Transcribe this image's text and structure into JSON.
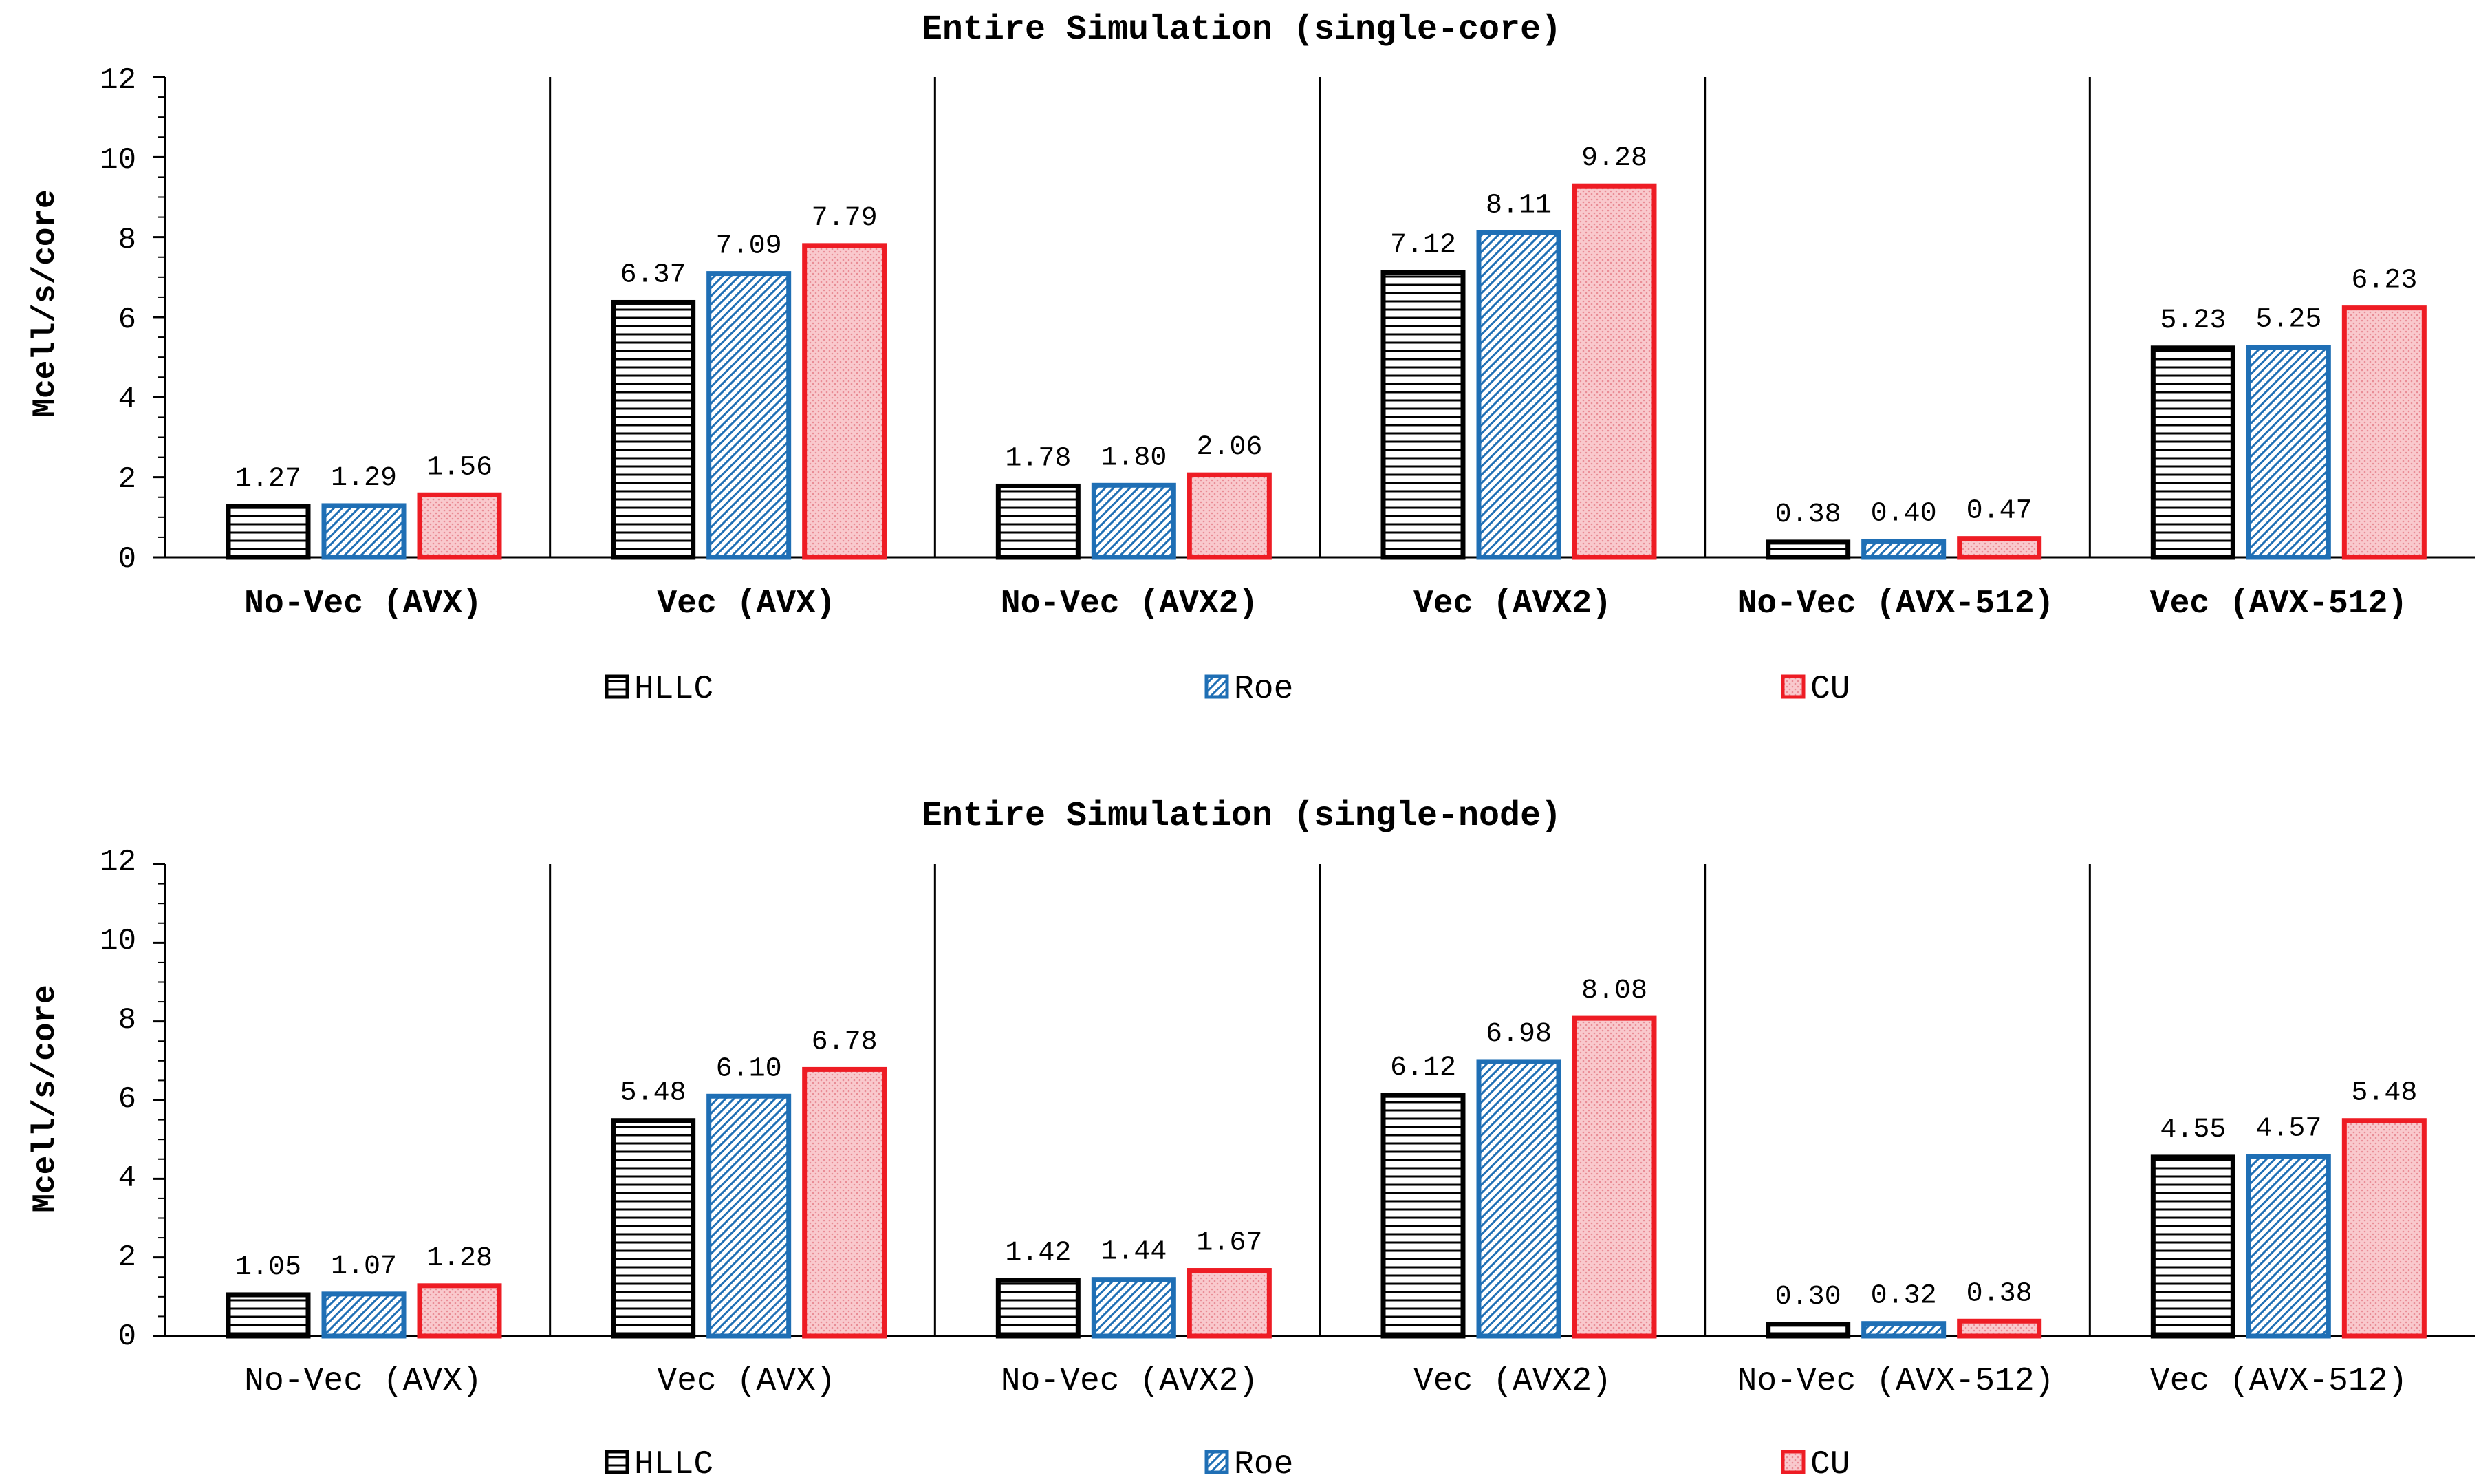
{
  "chart_data": [
    {
      "type": "bar",
      "title": "Entire Simulation (single-core)",
      "ylabel": "Mcell/s/core",
      "xlabel": "",
      "ylim": [
        0,
        12
      ],
      "yticks": [
        "0",
        "2",
        "4",
        "6",
        "8",
        "10",
        "12"
      ],
      "categories": [
        "No-Vec (AVX)",
        "Vec (AVX)",
        "No-Vec (AVX2)",
        "Vec (AVX2)",
        "No-Vec (AVX-512)",
        "Vec (AVX-512)"
      ],
      "bold_category_labels": true,
      "series": [
        {
          "name": "HLLC",
          "values": [
            1.27,
            6.37,
            1.78,
            7.12,
            0.38,
            5.23
          ],
          "labels": [
            "1.27",
            "6.37",
            "1.78",
            "7.12",
            "0.38",
            "5.23"
          ],
          "color": "#000000",
          "pattern": "horizontal-lines"
        },
        {
          "name": "Roe",
          "values": [
            1.29,
            7.09,
            1.8,
            8.11,
            0.4,
            5.25
          ],
          "labels": [
            "1.29",
            "7.09",
            "1.80",
            "8.11",
            "0.40",
            "5.25"
          ],
          "color": "#1f6fb5",
          "pattern": "diagonal-hatch"
        },
        {
          "name": "CU",
          "values": [
            1.56,
            7.79,
            2.06,
            9.28,
            0.47,
            6.23
          ],
          "labels": [
            "1.56",
            "7.79",
            "2.06",
            "9.28",
            "0.47",
            "6.23"
          ],
          "color": "#ee1c24",
          "pattern": "dotted-pink"
        }
      ],
      "legend": "bottom"
    },
    {
      "type": "bar",
      "title": "Entire Simulation (single-node)",
      "ylabel": "Mcell/s/core",
      "xlabel": "",
      "ylim": [
        0,
        12
      ],
      "yticks": [
        "0",
        "2",
        "4",
        "6",
        "8",
        "10",
        "12"
      ],
      "categories": [
        "No-Vec (AVX)",
        "Vec (AVX)",
        "No-Vec (AVX2)",
        "Vec (AVX2)",
        "No-Vec (AVX-512)",
        "Vec (AVX-512)"
      ],
      "bold_category_labels": false,
      "series": [
        {
          "name": "HLLC",
          "values": [
            1.05,
            5.48,
            1.42,
            6.12,
            0.3,
            4.55
          ],
          "labels": [
            "1.05",
            "5.48",
            "1.42",
            "6.12",
            "0.30",
            "4.55"
          ],
          "color": "#000000",
          "pattern": "horizontal-lines"
        },
        {
          "name": "Roe",
          "values": [
            1.07,
            6.1,
            1.44,
            6.98,
            0.32,
            4.57
          ],
          "labels": [
            "1.07",
            "6.10",
            "1.44",
            "6.98",
            "0.32",
            "4.57"
          ],
          "color": "#1f6fb5",
          "pattern": "diagonal-hatch"
        },
        {
          "name": "CU",
          "values": [
            1.28,
            6.78,
            1.67,
            8.08,
            0.38,
            5.48
          ],
          "labels": [
            "1.28",
            "6.78",
            "1.67",
            "8.08",
            "0.38",
            "5.48"
          ],
          "color": "#ee1c24",
          "pattern": "dotted-pink"
        }
      ],
      "legend": "bottom"
    }
  ]
}
